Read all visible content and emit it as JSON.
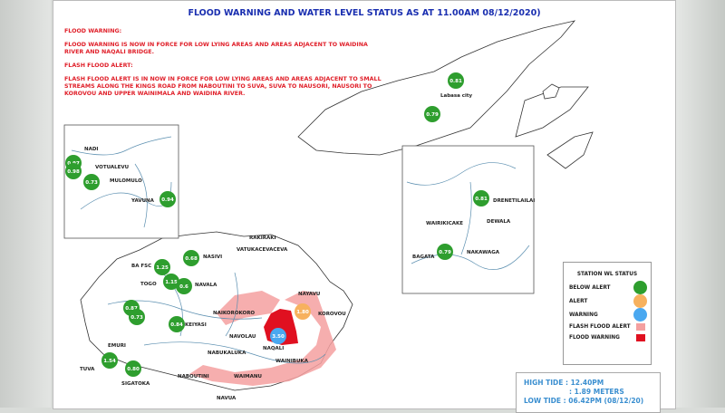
{
  "title": "FLOOD WARNING AND WATER LEVEL STATUS AS AT 11.00AM 08/12/2020)",
  "notices": {
    "flood_warning_heading": "FLOOD WARNING:",
    "flood_warning_text": "FLOOD WARNING IS NOW IN FORCE FOR LOW LYING AREAS AND AREAS ADJACENT TO WAIDINA RIVER AND NAQALI BRIDGE.",
    "flash_flood_heading": "FLASH FLOOD ALERT:",
    "flash_flood_text": "FLASH FLOOD ALERT IS IN NOW IN FORCE FOR LOW LYING AREAS AND AREAS ADJACENT TO SMALL STREAMS ALONG THE KINGS ROAD FROM NABOUTINI TO SUVA, SUVA TO NAUSORI, NAUSORI TO KOROVOU AND UPPER WAINIMALA AND WAIDINA RIVER."
  },
  "colors": {
    "below_alert": "#2e9e2e",
    "alert": "#f7b15e",
    "warning": "#4aa8f0",
    "flash_flood_alert": "#f4a0a0",
    "flood_warning": "#e01020"
  },
  "place_labels": {
    "labasa": "Labasa city",
    "nadi": "NADI",
    "vunabuvu": "VOTUALEVU",
    "mulomulo": "MULOMULO",
    "yavuna": "YAVUNA",
    "drentilailai": "DRENETILAILAI",
    "wairokocake": "WAIRIKICAKE",
    "dewala": "DEWALA",
    "nakawaga": "NAKAWAGA",
    "bagata": "BAGATA",
    "rakiraki": "RAKIRAKI",
    "vatukacevaceva": "VATUKACEVACEVA",
    "nasivi": "NASIVI",
    "ba_fsc": "BA FSC",
    "togo": "TOGO",
    "navala": "NAVALA",
    "nabowalu": "NAIKOROKORO",
    "korovou": "KOROVOU",
    "nayavu": "NAYAVU",
    "keiyasi": "KEIYASI",
    "navolau": "NAVOLAU",
    "naqali": "NAQALI",
    "nabukaluka": "NABUKALUKA",
    "wainibau": "WAINIBUKA",
    "emuri": "EMURI",
    "tuva": "TUVA",
    "sigatoka": "SIGATOKA",
    "naboutini": "NABOUTINI",
    "navua": "NAVUA",
    "waimanu": "WAIMANU"
  },
  "stations": [
    {
      "value": "0.81",
      "status": "below_alert"
    },
    {
      "value": "0.79",
      "status": "below_alert"
    },
    {
      "value": "0.97",
      "status": "below_alert"
    },
    {
      "value": "0.98",
      "status": "below_alert"
    },
    {
      "value": "0.73",
      "status": "below_alert"
    },
    {
      "value": "0.94",
      "status": "below_alert"
    },
    {
      "value": "0.81",
      "status": "below_alert"
    },
    {
      "value": "0.79",
      "status": "below_alert"
    },
    {
      "value": "0.68",
      "status": "below_alert"
    },
    {
      "value": "1.25",
      "status": "below_alert"
    },
    {
      "value": "1.15",
      "status": "below_alert"
    },
    {
      "value": "0.6",
      "status": "below_alert"
    },
    {
      "value": "0.87",
      "status": "below_alert"
    },
    {
      "value": "0.73",
      "status": "below_alert"
    },
    {
      "value": "0.84",
      "status": "below_alert"
    },
    {
      "value": "1.54",
      "status": "below_alert"
    },
    {
      "value": "0.80",
      "status": "below_alert"
    },
    {
      "value": "3.50",
      "status": "warning"
    },
    {
      "value": "1.80",
      "status": "alert"
    }
  ],
  "legend": {
    "title": "STATION WL STATUS",
    "items": [
      "BELOW ALERT",
      "ALERT",
      "WARNING",
      "FLASH FLOOD ALERT",
      "FLOOD WARNING"
    ]
  },
  "tide": {
    "high": "HIGH TIDE  : 12.40PM",
    "height": ": 1.89 METERS",
    "low": "LOW TIDE : 06.42PM (08/12/20)"
  }
}
